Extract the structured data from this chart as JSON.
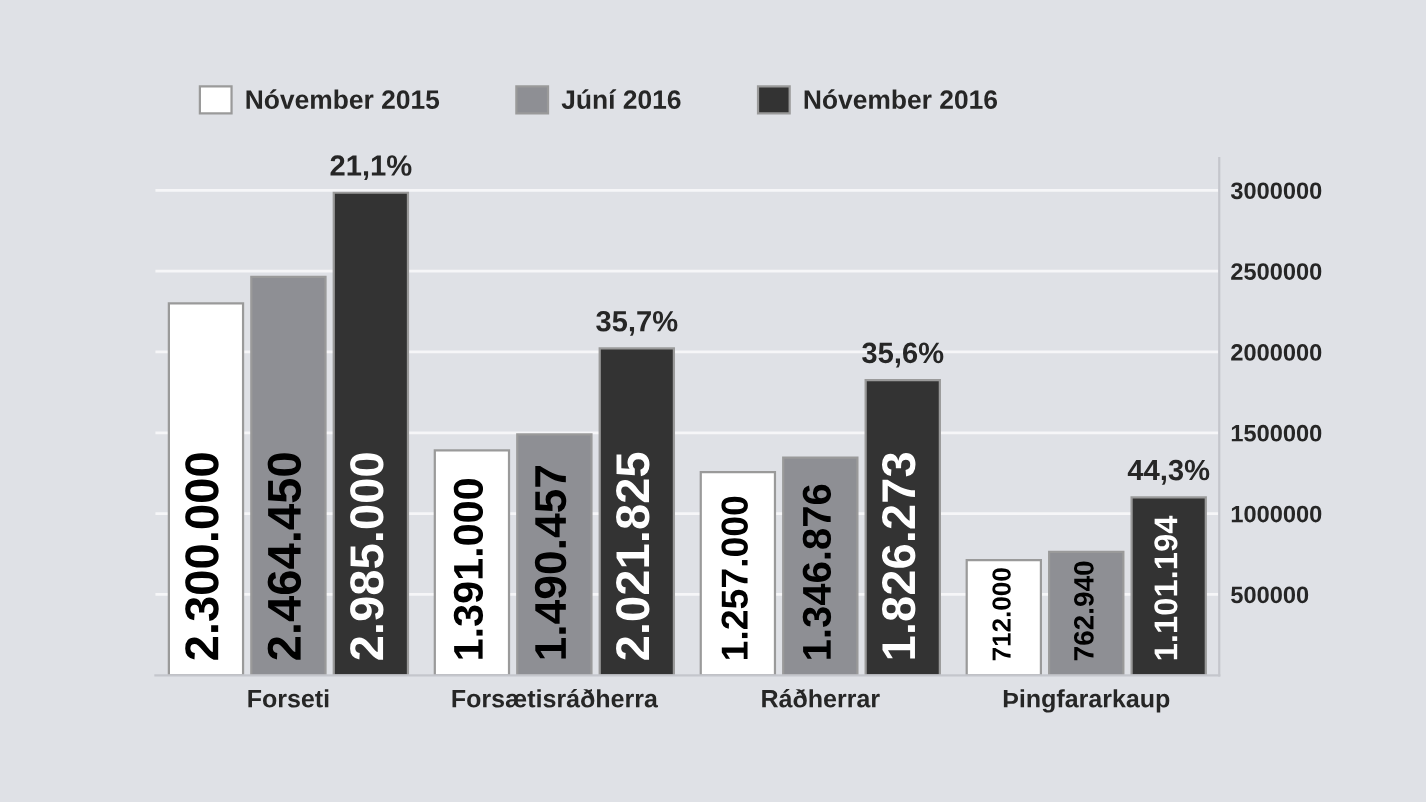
{
  "chart_data": {
    "type": "bar",
    "categories": [
      "Forseti",
      "Forsætisráðherra",
      "Ráðherrar",
      "Þingfararkaup"
    ],
    "series": [
      {
        "name": "Nóvember 2015",
        "color": "#ffffff",
        "values": [
          2300000,
          1391000,
          1257000,
          712000
        ],
        "value_labels": [
          "2.300.000",
          "1.391.000",
          "1.257.000",
          "712.000"
        ]
      },
      {
        "name": "Júní 2016",
        "color": "#8e8f94",
        "values": [
          2464450,
          1490457,
          1346876,
          762940
        ],
        "value_labels": [
          "2.464.450",
          "1.490.457",
          "1.346.876",
          "762.940"
        ]
      },
      {
        "name": "Nóvember 2016",
        "color": "#333333",
        "values": [
          2985000,
          2021825,
          1826273,
          1101194
        ],
        "value_labels": [
          "2.985.000",
          "2.021.825",
          "1.826.273",
          "1.101.194"
        ]
      }
    ],
    "ylim": [
      0,
      3200000
    ],
    "yticks": [
      500000,
      1000000,
      1500000,
      2000000,
      2500000,
      3000000
    ],
    "grid": "y",
    "legend": "top",
    "annotations": [
      "21,1%",
      "35,7%",
      "35,6%",
      "44,3%"
    ]
  }
}
